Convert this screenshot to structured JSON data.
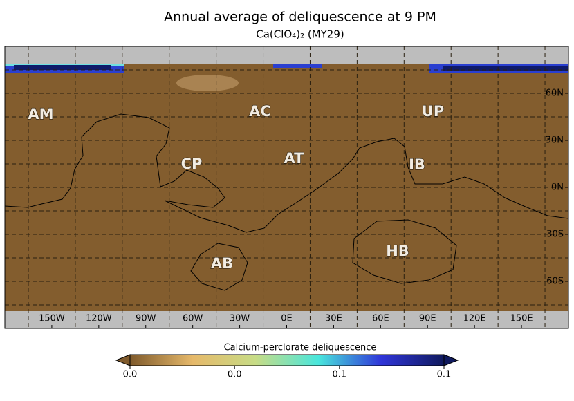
{
  "title": "Annual average of deliquescence at 9 PM",
  "subtitle": "Ca(ClO₄)₂   (MY29)",
  "map": {
    "xlim": [
      -180,
      180
    ],
    "ylim": [
      -90,
      90
    ],
    "xticks": [
      {
        "value": -150,
        "label": "150W"
      },
      {
        "value": -120,
        "label": "120W"
      },
      {
        "value": -90,
        "label": "90W"
      },
      {
        "value": -60,
        "label": "60W"
      },
      {
        "value": -30,
        "label": "30W"
      },
      {
        "value": 0,
        "label": "0E"
      },
      {
        "value": 30,
        "label": "30E"
      },
      {
        "value": 60,
        "label": "60E"
      },
      {
        "value": 90,
        "label": "90E"
      },
      {
        "value": 120,
        "label": "120E"
      },
      {
        "value": 150,
        "label": "150E"
      }
    ],
    "yticks": [
      {
        "value": 60,
        "label": "60N"
      },
      {
        "value": 30,
        "label": "30N"
      },
      {
        "value": 0,
        "label": "0N"
      },
      {
        "value": -30,
        "label": "30S"
      },
      {
        "value": -60,
        "label": "60S"
      }
    ],
    "lon_grid": [
      -165,
      -135,
      -105,
      -75,
      -45,
      -15,
      15,
      45,
      75,
      105,
      135,
      165
    ],
    "lat_grid": [
      75,
      60,
      45,
      30,
      15,
      0,
      -15,
      -30,
      -45,
      -60,
      -75
    ],
    "regions": [
      "AM",
      "AC",
      "UP",
      "CP",
      "AT",
      "IB",
      "AB",
      "HB"
    ]
  },
  "colorbar": {
    "label": "Calcium-perclorate deliquescence",
    "lim": [
      0,
      0.1
    ],
    "ticks": [
      {
        "value": 0,
        "label": "0.0"
      },
      {
        "value": 0.0333,
        "label": "0.0"
      },
      {
        "value": 0.0667,
        "label": "0.1"
      },
      {
        "value": 0.1,
        "label": "0.1"
      }
    ],
    "colors": [
      "#7f5a2c",
      "#e6b96a",
      "#c7dc86",
      "#49e6dc",
      "#2f35d8",
      "#101a5e"
    ]
  }
}
